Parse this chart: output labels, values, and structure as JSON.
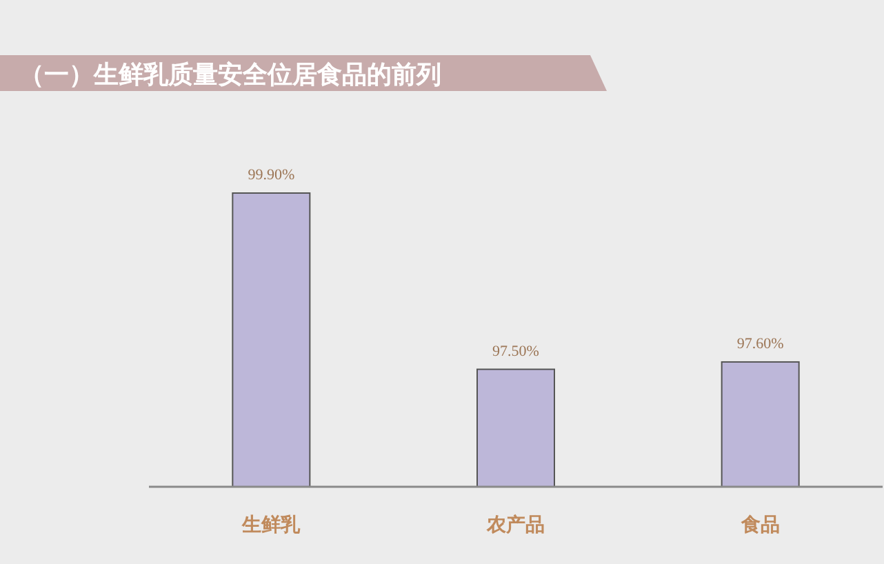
{
  "chart_data": {
    "type": "bar",
    "title": "（一）生鲜乳质量安全位居食品的前列",
    "categories": [
      "生鲜乳",
      "农产品",
      "食品"
    ],
    "values": [
      99.9,
      97.5,
      97.6
    ],
    "value_labels": [
      "99.90%",
      "97.50%",
      "97.60%"
    ],
    "color": "#bdb7d9",
    "ylim": [
      95.9,
      99.9
    ],
    "tick_labels": "x"
  }
}
